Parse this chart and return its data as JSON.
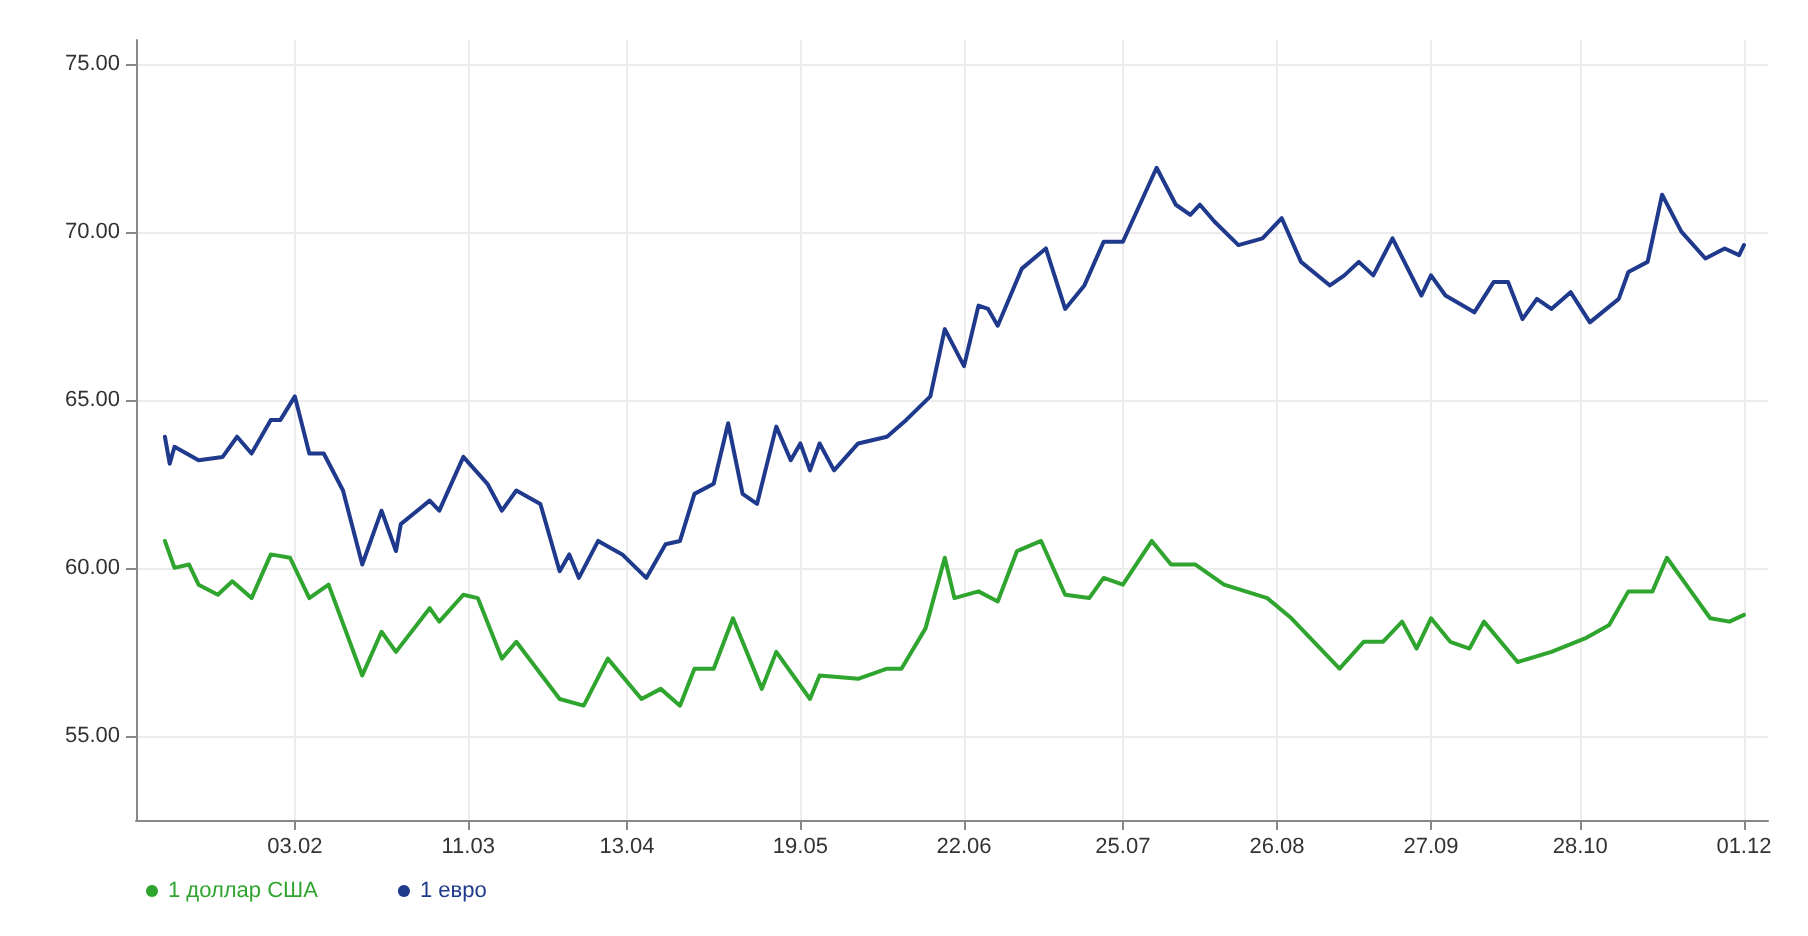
{
  "chart_data": {
    "type": "line",
    "xlim": [
      "--01-01",
      "--12-06"
    ],
    "xticks": [
      {
        "value": "--02-03",
        "label": "03.02"
      },
      {
        "value": "--03-11",
        "label": "11.03"
      },
      {
        "value": "--04-13",
        "label": "13.04"
      },
      {
        "value": "--05-19",
        "label": "19.05"
      },
      {
        "value": "--06-22",
        "label": "22.06"
      },
      {
        "value": "--07-25",
        "label": "25.07"
      },
      {
        "value": "--08-26",
        "label": "26.08"
      },
      {
        "value": "--09-27",
        "label": "27.09"
      },
      {
        "value": "--10-28",
        "label": "28.10"
      },
      {
        "value": "--12-01",
        "label": "01.12"
      }
    ],
    "ylim": [
      52.5,
      75.7
    ],
    "yticks": [
      {
        "value": 55,
        "label": "55.00"
      },
      {
        "value": 60,
        "label": "60.00"
      },
      {
        "value": 65,
        "label": "65.00"
      },
      {
        "value": 70,
        "label": "70.00"
      },
      {
        "value": 75,
        "label": "75.00"
      }
    ],
    "grid": true,
    "legend": "bottom left",
    "series": [
      {
        "name": "1 доллар США",
        "color": "#2fa52f",
        "x": [
          "--01-07",
          "--01-09",
          "--01-12",
          "--01-14",
          "--01-18",
          "--01-21",
          "--01-25",
          "--01-29",
          "--02-02",
          "--02-06",
          "--02-10",
          "--02-17",
          "--02-21",
          "--02-24",
          "--03-03",
          "--03-05",
          "--03-10",
          "--03-13",
          "--03-18",
          "--03-21",
          "--03-30",
          "--04-04",
          "--04-09",
          "--04-16",
          "--04-20",
          "--04-24",
          "--04-27",
          "--05-01",
          "--05-05",
          "--05-11",
          "--05-14",
          "--05-21",
          "--05-23",
          "--05-31",
          "--06-06",
          "--06-09",
          "--06-14",
          "--06-18",
          "--06-20",
          "--06-25",
          "--06-29",
          "--07-03",
          "--07-08",
          "--07-13",
          "--07-18",
          "--07-21",
          "--07-25",
          "--07-31",
          "--08-04",
          "--08-09",
          "--08-15",
          "--08-24",
          "--08-29",
          "--09-08",
          "--09-13",
          "--09-17",
          "--09-21",
          "--09-24",
          "--09-27",
          "--10-01",
          "--10-05",
          "--10-08",
          "--10-15",
          "--10-22",
          "--10-29",
          "--11-03",
          "--11-07",
          "--11-12",
          "--11-15",
          "--11-20",
          "--11-24",
          "--11-28",
          "--12-01"
        ],
        "values": [
          60.8,
          60.0,
          60.1,
          59.5,
          59.2,
          59.6,
          59.1,
          60.4,
          60.3,
          59.1,
          59.5,
          56.8,
          58.1,
          57.5,
          58.8,
          58.4,
          59.2,
          59.1,
          57.3,
          57.8,
          56.1,
          55.9,
          57.3,
          56.1,
          56.4,
          55.9,
          57.0,
          57.0,
          58.5,
          56.4,
          57.5,
          56.1,
          56.8,
          56.7,
          57.0,
          57.0,
          58.2,
          60.3,
          59.1,
          59.3,
          59.0,
          60.5,
          60.8,
          59.2,
          59.1,
          59.7,
          59.5,
          60.8,
          60.1,
          60.1,
          59.5,
          59.1,
          58.5,
          57.0,
          57.8,
          57.8,
          58.4,
          57.6,
          58.5,
          57.8,
          57.6,
          58.4,
          57.2,
          57.5,
          57.9,
          58.3,
          59.3,
          59.3,
          60.3,
          59.3,
          58.5,
          58.4,
          58.6
        ]
      },
      {
        "name": "1 евро",
        "color": "#1f3a8c",
        "x": [
          "--01-07",
          "--01-08",
          "--01-09",
          "--01-14",
          "--01-19",
          "--01-22",
          "--01-25",
          "--01-29",
          "--01-31",
          "--02-03",
          "--02-06",
          "--02-09",
          "--02-13",
          "--02-17",
          "--02-21",
          "--02-24",
          "--02-25",
          "--03-03",
          "--03-05",
          "--03-10",
          "--03-15",
          "--03-18",
          "--03-21",
          "--03-26",
          "--03-30",
          "--04-01",
          "--04-03",
          "--04-07",
          "--04-12",
          "--04-17",
          "--04-21",
          "--04-24",
          "--04-27",
          "--05-01",
          "--05-04",
          "--05-07",
          "--05-10",
          "--05-14",
          "--05-17",
          "--05-19",
          "--05-21",
          "--05-23",
          "--05-26",
          "--05-31",
          "--06-06",
          "--06-10",
          "--06-15",
          "--06-18",
          "--06-22",
          "--06-25",
          "--06-27",
          "--06-29",
          "--07-04",
          "--07-09",
          "--07-13",
          "--07-17",
          "--07-21",
          "--07-25",
          "--08-01",
          "--08-05",
          "--08-08",
          "--08-10",
          "--08-13",
          "--08-18",
          "--08-23",
          "--08-27",
          "--08-31",
          "--09-06",
          "--09-09",
          "--09-12",
          "--09-15",
          "--09-19",
          "--09-25",
          "--09-27",
          "--09-30",
          "--10-06",
          "--10-10",
          "--10-13",
          "--10-16",
          "--10-19",
          "--10-22",
          "--10-26",
          "--10-30",
          "--11-05",
          "--11-07",
          "--11-11",
          "--11-14",
          "--11-18",
          "--11-23",
          "--11-27",
          "--11-30",
          "--12-01"
        ],
        "values": [
          63.9,
          63.1,
          63.6,
          63.2,
          63.3,
          63.9,
          63.4,
          64.4,
          64.4,
          65.1,
          63.4,
          63.4,
          62.3,
          60.1,
          61.7,
          60.5,
          61.3,
          62.0,
          61.7,
          63.3,
          62.5,
          61.7,
          62.3,
          61.9,
          59.9,
          60.4,
          59.7,
          60.8,
          60.4,
          59.7,
          60.7,
          60.8,
          62.2,
          62.5,
          64.3,
          62.2,
          61.9,
          64.2,
          63.2,
          63.7,
          62.9,
          63.7,
          62.9,
          63.7,
          63.9,
          64.4,
          65.1,
          67.1,
          66.0,
          67.8,
          67.7,
          67.2,
          68.9,
          69.5,
          67.7,
          68.4,
          69.7,
          69.7,
          71.9,
          70.8,
          70.5,
          70.8,
          70.3,
          69.6,
          69.8,
          70.4,
          69.1,
          68.4,
          68.7,
          69.1,
          68.7,
          69.8,
          68.1,
          68.7,
          68.1,
          67.6,
          68.5,
          68.5,
          67.4,
          68.0,
          67.7,
          68.2,
          67.3,
          68.0,
          68.8,
          69.1,
          71.1,
          70.0,
          69.2,
          69.5,
          69.3,
          69.6
        ]
      }
    ]
  }
}
